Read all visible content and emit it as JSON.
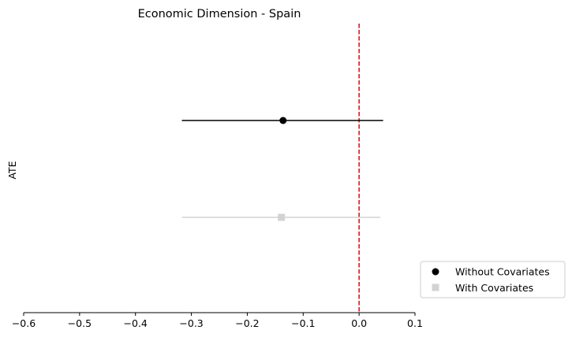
{
  "chart_data": {
    "type": "scatter",
    "title": "Economic Dimension - Spain",
    "xlabel": "",
    "ylabel": "ATE",
    "xlim": [
      -0.6,
      0.1
    ],
    "x_ticks": [
      -0.6,
      -0.5,
      -0.4,
      -0.3,
      -0.2,
      -0.1,
      0.0,
      0.1
    ],
    "x_tick_labels": [
      "−0.6",
      "−0.5",
      "−0.4",
      "−0.3",
      "−0.2",
      "−0.1",
      "0.0",
      "0.1"
    ],
    "reference_line": {
      "x": 0.0,
      "color": "#e8000b",
      "style": "dashed"
    },
    "grid": false,
    "series": [
      {
        "name": "Without Covariates",
        "x": -0.136,
        "ci": [
          -0.317,
          0.043
        ],
        "marker": "circle",
        "color": "#000000",
        "row": 1
      },
      {
        "name": "With Covariates",
        "x": -0.139,
        "ci": [
          -0.317,
          0.038
        ],
        "marker": "square",
        "color": "#d3d3d3",
        "row": 2
      }
    ],
    "legend": {
      "placement": "bottom-right, outside plot"
    }
  }
}
